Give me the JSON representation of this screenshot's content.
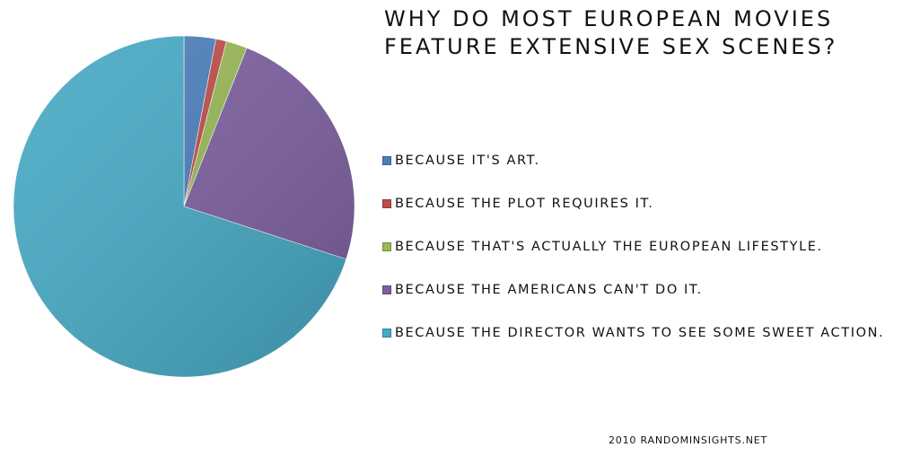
{
  "title_lines": [
    "Why do most European movies",
    "feature extensive sex scenes?"
  ],
  "credit": "2010 randominsights.net",
  "chart_data": {
    "type": "pie",
    "title": "Why do most European movies feature extensive sex scenes?",
    "legend_position": "right",
    "start_angle_deg": 0,
    "direction": "clockwise",
    "categories": [
      "Because it's art.",
      "Because the plot requires it.",
      "Because that's actually the European lifestyle.",
      "Because the Americans can't do it.",
      "Because the director wants to see some sweet action."
    ],
    "values": [
      3,
      1,
      2,
      24,
      70
    ],
    "colors": [
      "#4a7ebb",
      "#be4b48",
      "#98b954",
      "#7d5fa0",
      "#46aac5"
    ]
  }
}
